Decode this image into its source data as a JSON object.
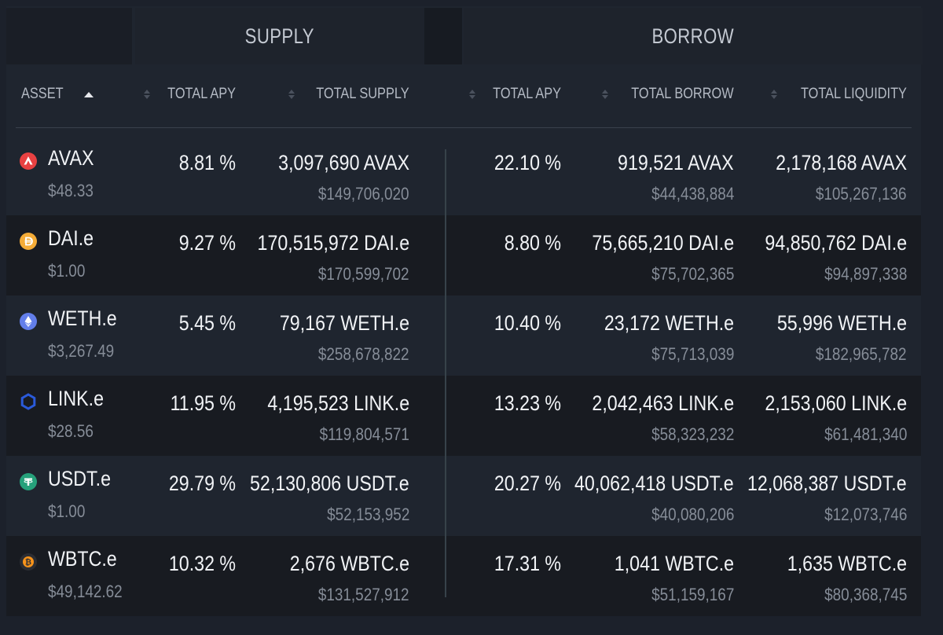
{
  "groups": {
    "supply": "SUPPLY",
    "borrow": "BORROW"
  },
  "columns": {
    "asset": "ASSET",
    "supply_apy": "TOTAL APY",
    "total_supply": "TOTAL SUPPLY",
    "borrow_apy": "TOTAL APY",
    "total_borrow": "TOTAL BORROW",
    "total_liquidity": "TOTAL LIQUIDITY"
  },
  "rows": [
    {
      "asset": "AVAX",
      "price": "$48.33",
      "icon": "avax-icon",
      "color": "#e84142",
      "supply_apy": "8.81 %",
      "supply_amount": "3,097,690 AVAX",
      "supply_usd": "$149,706,020",
      "borrow_apy": "22.10 %",
      "borrow_amount": "919,521 AVAX",
      "borrow_usd": "$44,438,884",
      "liquidity_amount": "2,178,168 AVAX",
      "liquidity_usd": "$105,267,136"
    },
    {
      "asset": "DAI.e",
      "price": "$1.00",
      "icon": "dai-icon",
      "color": "#f5ac37",
      "supply_apy": "9.27 %",
      "supply_amount": "170,515,972 DAI.e",
      "supply_usd": "$170,599,702",
      "borrow_apy": "8.80 %",
      "borrow_amount": "75,665,210 DAI.e",
      "borrow_usd": "$75,702,365",
      "liquidity_amount": "94,850,762 DAI.e",
      "liquidity_usd": "$94,897,338"
    },
    {
      "asset": "WETH.e",
      "price": "$3,267.49",
      "icon": "eth-icon",
      "color": "#627eea",
      "supply_apy": "5.45 %",
      "supply_amount": "79,167 WETH.e",
      "supply_usd": "$258,678,822",
      "borrow_apy": "10.40 %",
      "borrow_amount": "23,172 WETH.e",
      "borrow_usd": "$75,713,039",
      "liquidity_amount": "55,996 WETH.e",
      "liquidity_usd": "$182,965,782"
    },
    {
      "asset": "LINK.e",
      "price": "$28.56",
      "icon": "link-icon",
      "color": "#2a5ada",
      "supply_apy": "11.95 %",
      "supply_amount": "4,195,523 LINK.e",
      "supply_usd": "$119,804,571",
      "borrow_apy": "13.23 %",
      "borrow_amount": "2,042,463 LINK.e",
      "borrow_usd": "$58,323,232",
      "liquidity_amount": "2,153,060 LINK.e",
      "liquidity_usd": "$61,481,340"
    },
    {
      "asset": "USDT.e",
      "price": "$1.00",
      "icon": "tether-icon",
      "color": "#26a17b",
      "supply_apy": "29.79 %",
      "supply_amount": "52,130,806 USDT.e",
      "supply_usd": "$52,153,952",
      "borrow_apy": "20.27 %",
      "borrow_amount": "40,062,418 USDT.e",
      "borrow_usd": "$40,080,206",
      "liquidity_amount": "12,068,387 USDT.e",
      "liquidity_usd": "$12,073,746"
    },
    {
      "asset": "WBTC.e",
      "price": "$49,142.62",
      "icon": "bitcoin-icon",
      "color": "#f7931a",
      "supply_apy": "10.32 %",
      "supply_amount": "2,676 WBTC.e",
      "supply_usd": "$131,527,912",
      "borrow_apy": "17.31 %",
      "borrow_amount": "1,041 WBTC.e",
      "borrow_usd": "$51,159,167",
      "liquidity_amount": "1,635 WBTC.e",
      "liquidity_usd": "$80,368,745"
    }
  ]
}
